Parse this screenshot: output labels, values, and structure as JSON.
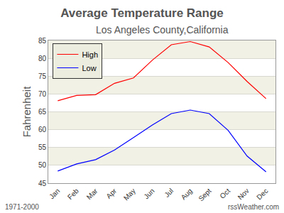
{
  "chart_data": {
    "type": "line",
    "title": "Average Temperature Range",
    "subtitle": "Los Angeles County,California",
    "y_label": "Fahrenheit",
    "categories": [
      "Jan",
      "Feb",
      "Mar",
      "Apr",
      "May",
      "Jun",
      "Jul",
      "Aug",
      "Sept",
      "Oct",
      "Nov",
      "Dec"
    ],
    "series": [
      {
        "name": "High",
        "color": "#ff0000",
        "values": [
          68.1,
          69.6,
          69.8,
          73.0,
          74.5,
          79.5,
          83.8,
          84.7,
          83.2,
          78.8,
          73.5,
          68.7
        ]
      },
      {
        "name": "Low",
        "color": "#0000ff",
        "values": [
          48.4,
          50.4,
          51.6,
          54.3,
          57.8,
          61.3,
          64.5,
          65.5,
          64.5,
          59.8,
          52.6,
          48.2
        ]
      }
    ],
    "ylim": [
      45,
      85
    ],
    "yticks": [
      45,
      50,
      55,
      60,
      65,
      70,
      75,
      80,
      85
    ],
    "grid": true,
    "legend": "upper left",
    "annotations": [
      "1971-2000",
      "rssWeather.com"
    ]
  }
}
